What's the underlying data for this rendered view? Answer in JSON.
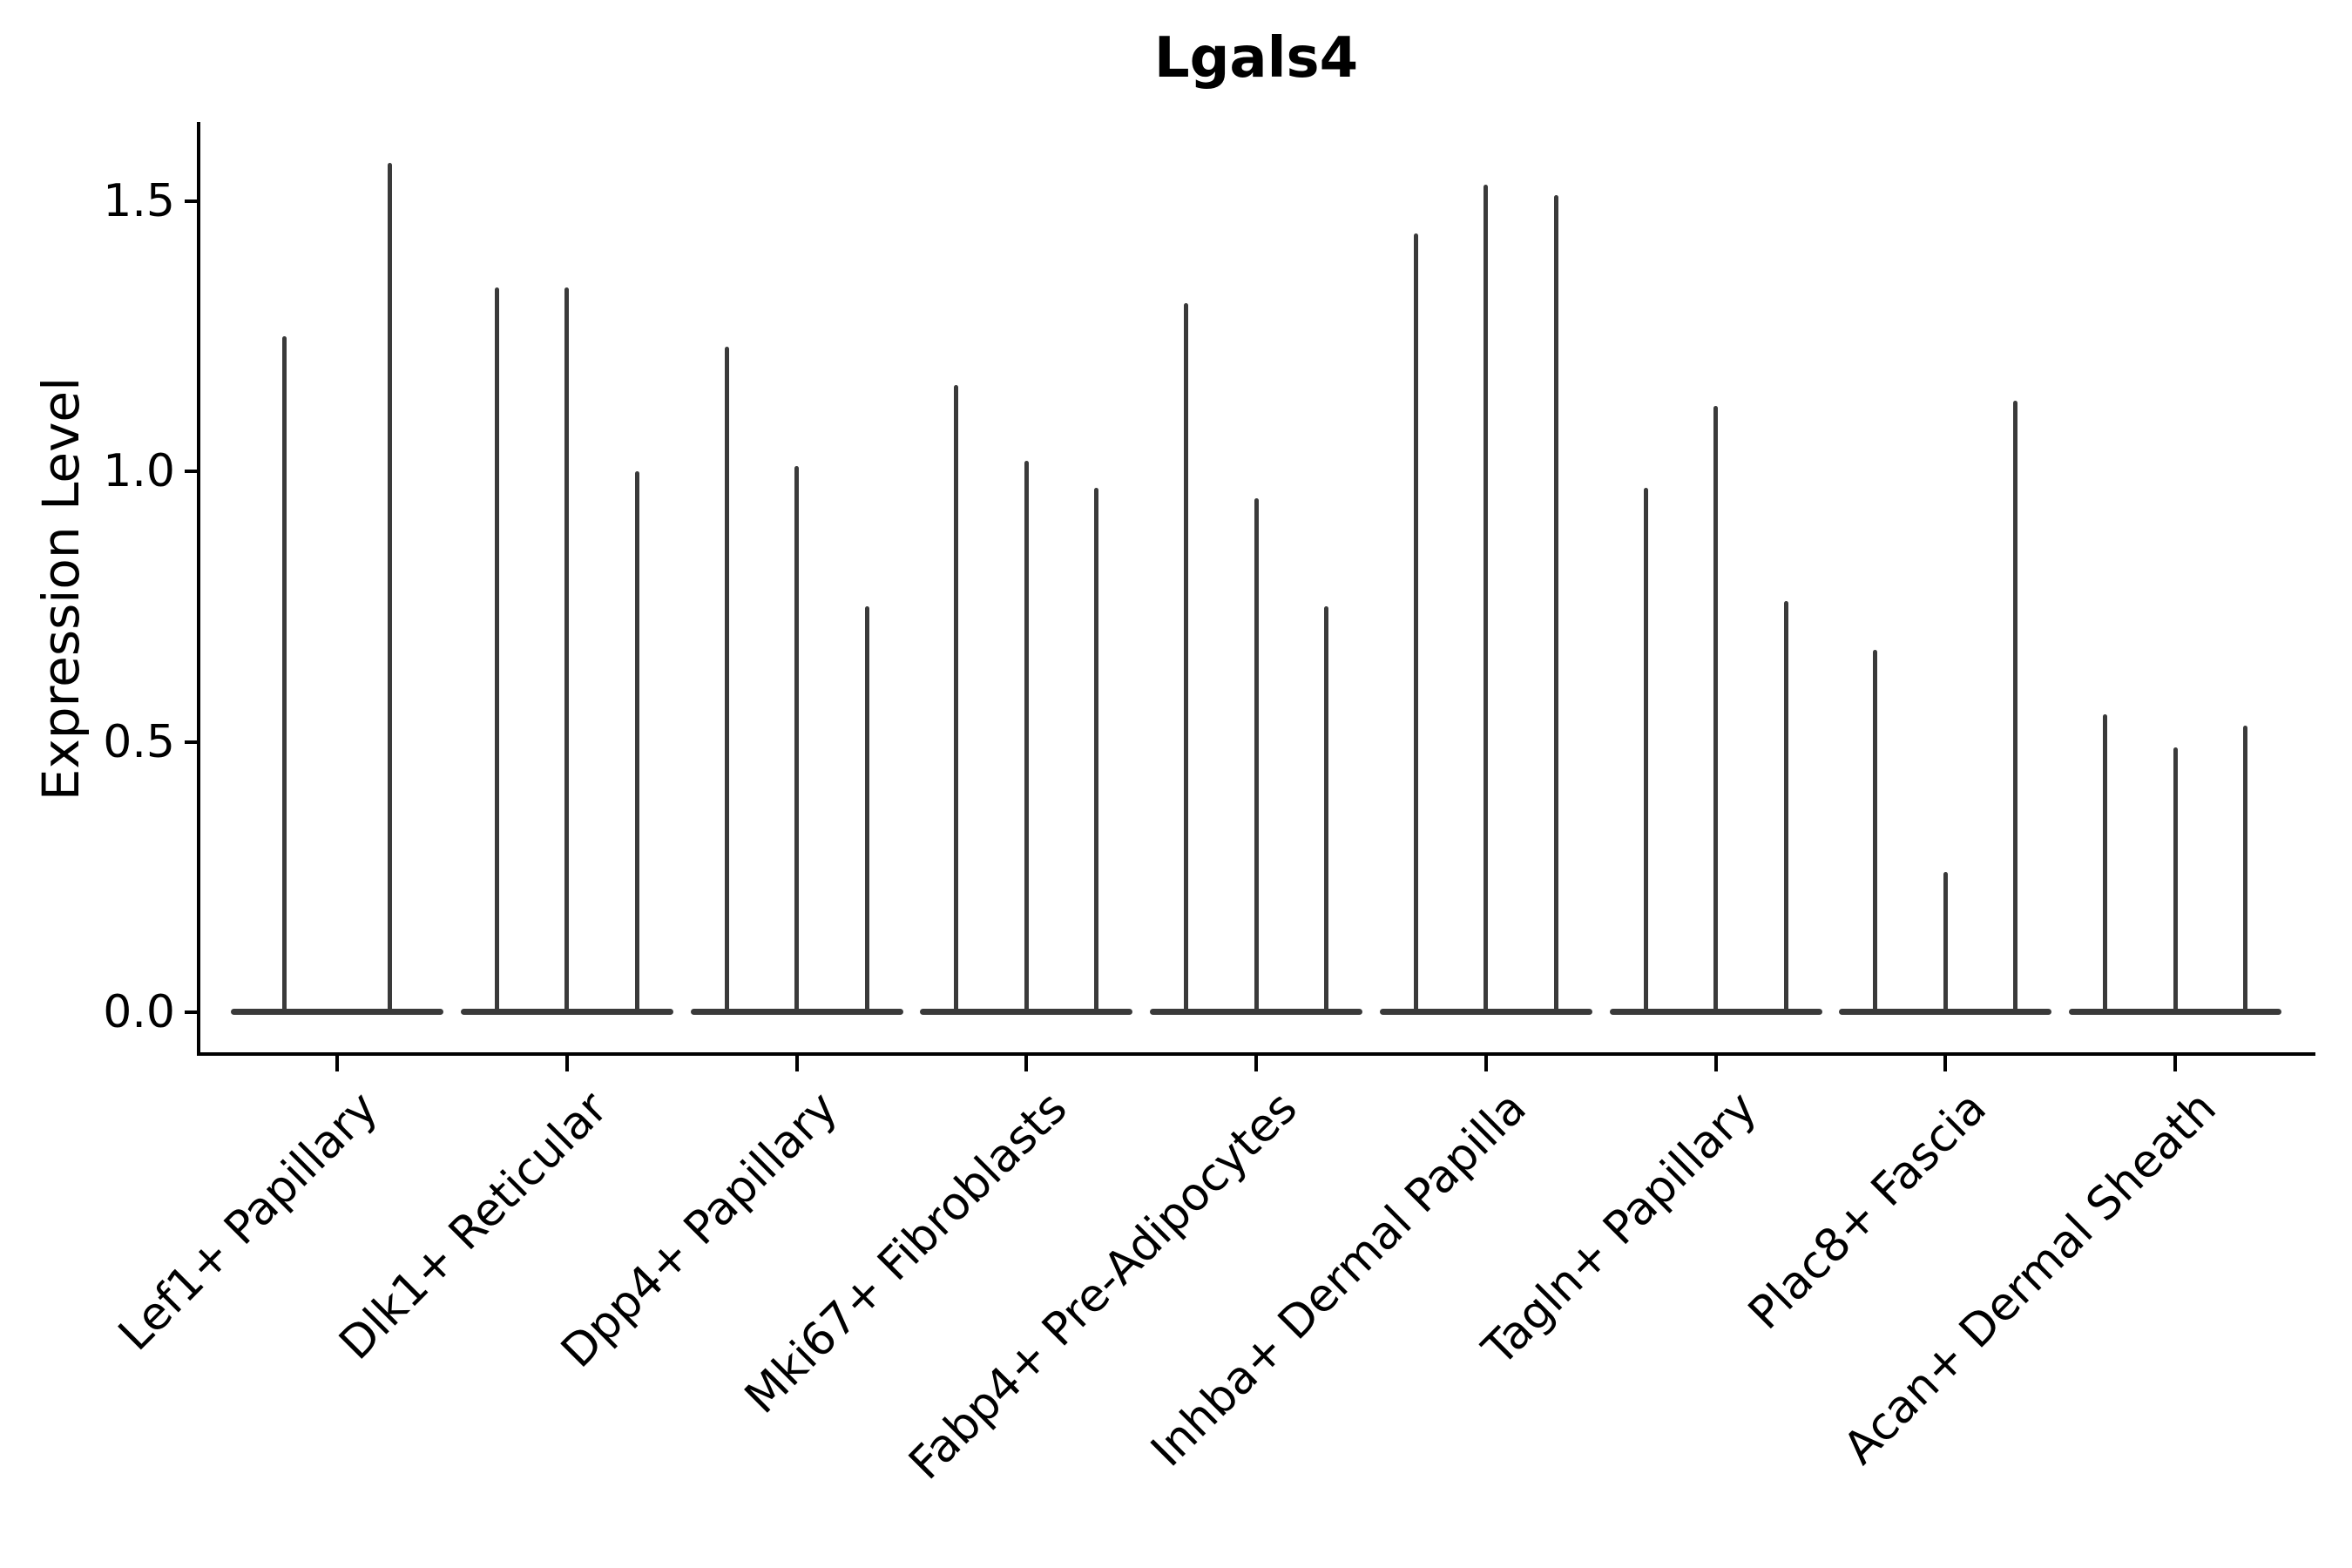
{
  "title": "Lgals4",
  "y_axis": {
    "label": "Expression Level",
    "tick_labels": [
      "0.0",
      "0.5",
      "1.0",
      "1.5"
    ]
  },
  "colors": {
    "violin": "#3a3a3a",
    "axis": "#000000",
    "text": "#000000",
    "background": "#ffffff"
  },
  "chart_data": {
    "type": "violin",
    "title": "Lgals4",
    "xlabel": "",
    "ylabel": "Expression Level",
    "yticks": [
      0.0,
      0.5,
      1.0,
      1.5
    ],
    "ytick_labels": [
      "0.0",
      "0.5",
      "1.0",
      "1.5"
    ],
    "ylim_shown": [
      -0.08,
      1.65
    ],
    "grid": false,
    "legend_position": "none",
    "orientation": "vertical",
    "x_tick_rotation_deg": 45,
    "description": "Single-gene expression violin plot. Each category shows needle-thin violins: nearly all density lies at expression 0 (flat wide base), with a hairline spike rising to the maximum expression value listed in spike_maxima.",
    "categories": [
      "Lef1+ Papillary",
      "Dlk1+ Reticular",
      "Dpp4+ Papillary",
      "Mki67+ Fibroblasts",
      "Fabp4+ Pre-Adipocytes",
      "Inhba+ Dermal Papilla",
      "Tagln+ Papillary",
      "Plac8+ Fascia",
      "Acan+ Dermal Sheath"
    ],
    "violin_groups": [
      {
        "category": "Lef1+ Papillary",
        "n_violins": 2,
        "spike_maxima": [
          1.25,
          1.57
        ]
      },
      {
        "category": "Dlk1+ Reticular",
        "n_violins": 3,
        "spike_maxima": [
          1.34,
          1.34,
          1.0
        ]
      },
      {
        "category": "Dpp4+ Papillary",
        "n_violins": 3,
        "spike_maxima": [
          1.23,
          1.01,
          0.75
        ]
      },
      {
        "category": "Mki67+ Fibroblasts",
        "n_violins": 3,
        "spike_maxima": [
          1.16,
          1.02,
          0.97
        ]
      },
      {
        "category": "Fabp4+ Pre-Adipocytes",
        "n_violins": 3,
        "spike_maxima": [
          1.31,
          0.95,
          0.75
        ]
      },
      {
        "category": "Inhba+ Dermal Papilla",
        "n_violins": 3,
        "spike_maxima": [
          1.44,
          1.53,
          1.51
        ]
      },
      {
        "category": "Tagln+ Papillary",
        "n_violins": 3,
        "spike_maxima": [
          0.97,
          1.12,
          0.76
        ]
      },
      {
        "category": "Plac8+ Fascia",
        "n_violins": 3,
        "spike_maxima": [
          0.67,
          0.26,
          1.13
        ]
      },
      {
        "category": "Acan+ Dermal Sheath",
        "n_violins": 3,
        "spike_maxima": [
          0.55,
          0.49,
          0.53
        ]
      }
    ]
  }
}
